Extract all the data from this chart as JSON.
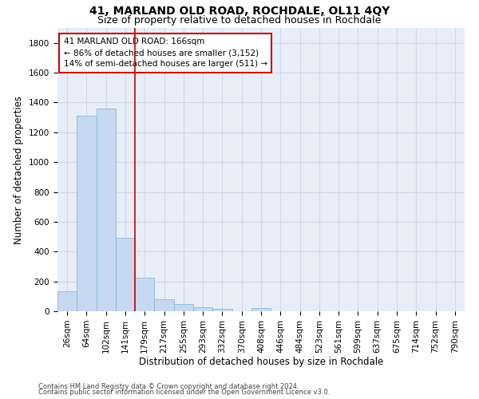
{
  "title": "41, MARLAND OLD ROAD, ROCHDALE, OL11 4QY",
  "subtitle": "Size of property relative to detached houses in Rochdale",
  "xlabel": "Distribution of detached houses by size in Rochdale",
  "ylabel": "Number of detached properties",
  "footnote1": "Contains HM Land Registry data © Crown copyright and database right 2024.",
  "footnote2": "Contains public sector information licensed under the Open Government Licence v3.0.",
  "bar_labels": [
    "26sqm",
    "64sqm",
    "102sqm",
    "141sqm",
    "179sqm",
    "217sqm",
    "255sqm",
    "293sqm",
    "332sqm",
    "370sqm",
    "408sqm",
    "446sqm",
    "484sqm",
    "523sqm",
    "561sqm",
    "599sqm",
    "637sqm",
    "675sqm",
    "714sqm",
    "752sqm",
    "790sqm"
  ],
  "bar_values": [
    135,
    1310,
    1360,
    490,
    225,
    80,
    48,
    28,
    15,
    0,
    20,
    0,
    0,
    0,
    0,
    0,
    0,
    0,
    0,
    0,
    0
  ],
  "bar_color": "#c6d9f0",
  "bar_edge_color": "#7bafd4",
  "vline_color": "#cc0000",
  "annotation_text": "41 MARLAND OLD ROAD: 166sqm\n← 86% of detached houses are smaller (3,152)\n14% of semi-detached houses are larger (511) →",
  "annotation_box_color": "#cc0000",
  "ylim": [
    0,
    1900
  ],
  "yticks": [
    0,
    200,
    400,
    600,
    800,
    1000,
    1200,
    1400,
    1600,
    1800
  ],
  "grid_color": "#d0d8e8",
  "bg_color": "#e8eef8",
  "title_fontsize": 10,
  "subtitle_fontsize": 9,
  "axis_label_fontsize": 8.5,
  "tick_fontsize": 7.5,
  "annotation_fontsize": 7.5,
  "footnote_fontsize": 6
}
